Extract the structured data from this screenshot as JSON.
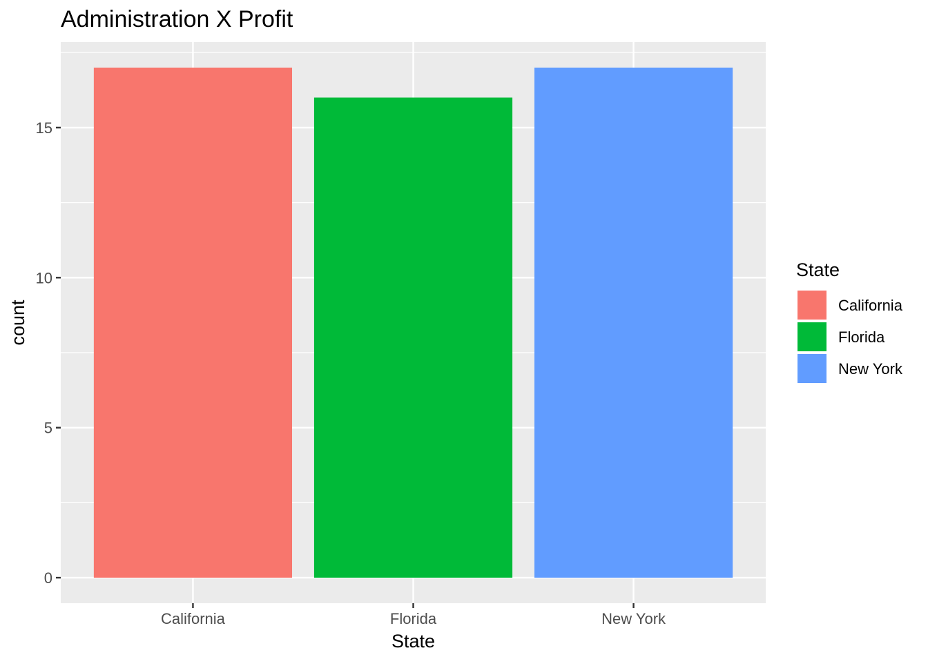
{
  "chart_data": {
    "type": "bar",
    "title": "Administration X Profit",
    "xlabel": "State",
    "ylabel": "count",
    "categories": [
      "California",
      "Florida",
      "New York"
    ],
    "values": [
      17,
      16,
      17
    ],
    "colors": [
      "#F8766D",
      "#00BA38",
      "#619CFF"
    ],
    "ylim": [
      -0.85,
      17.85
    ],
    "yticks": [
      0,
      5,
      10,
      15
    ],
    "ytick_labels": [
      "0",
      "5",
      "10",
      "15"
    ],
    "grid": true,
    "panel_background": "#EBEBEB",
    "legend": {
      "title": "State",
      "position": "right",
      "entries": [
        "California",
        "Florida",
        "New York"
      ]
    }
  }
}
